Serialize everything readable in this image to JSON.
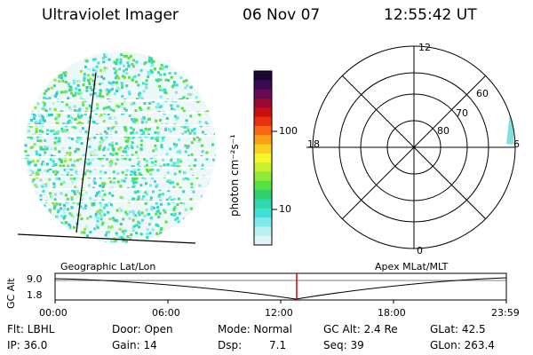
{
  "header": {
    "title": "Ultraviolet Imager",
    "date": "06 Nov 07",
    "time": "12:55:42 UT"
  },
  "colorbar": {
    "unit_label": "photon cm⁻²s⁻¹",
    "ticks": [
      "100",
      "10"
    ],
    "colors": [
      "#1a0830",
      "#3b0a50",
      "#6a0a50",
      "#9a0a30",
      "#c81010",
      "#e83010",
      "#f86818",
      "#f8a018",
      "#f8d020",
      "#f8f828",
      "#c8f030",
      "#90e838",
      "#58e040",
      "#30d070",
      "#30d8b0",
      "#40e0d8",
      "#80e8e8",
      "#b8f0f0",
      "#e0f6f6"
    ]
  },
  "polar": {
    "mlt_labels": [
      "12",
      "18",
      "6",
      "0"
    ],
    "lat_labels": [
      "60",
      "70",
      "80"
    ]
  },
  "orbit": {
    "left_caption": "Geographic Lat/Lon",
    "right_caption": "Apex MLat/MLT",
    "axis_label": "GC Alt",
    "y_ticks": [
      "9.0",
      "1.8"
    ],
    "x_ticks": [
      "00:00",
      "06:00",
      "12:00",
      "18:00",
      "23:59"
    ],
    "current_marker_color": "#d00000"
  },
  "status": {
    "flt": "Flt: LBHL",
    "ip": "IP: 36.0",
    "door": "Door: Open",
    "gain": "Gain: 14",
    "mode": "Mode: Normal",
    "dsp_label": "Dsp:",
    "dsp_value": "7.1",
    "gc_alt": "GC Alt: 2.4 Re",
    "seq": "Seq: 39",
    "glat": "GLat:  42.5",
    "glon": "GLon: 263.4"
  }
}
